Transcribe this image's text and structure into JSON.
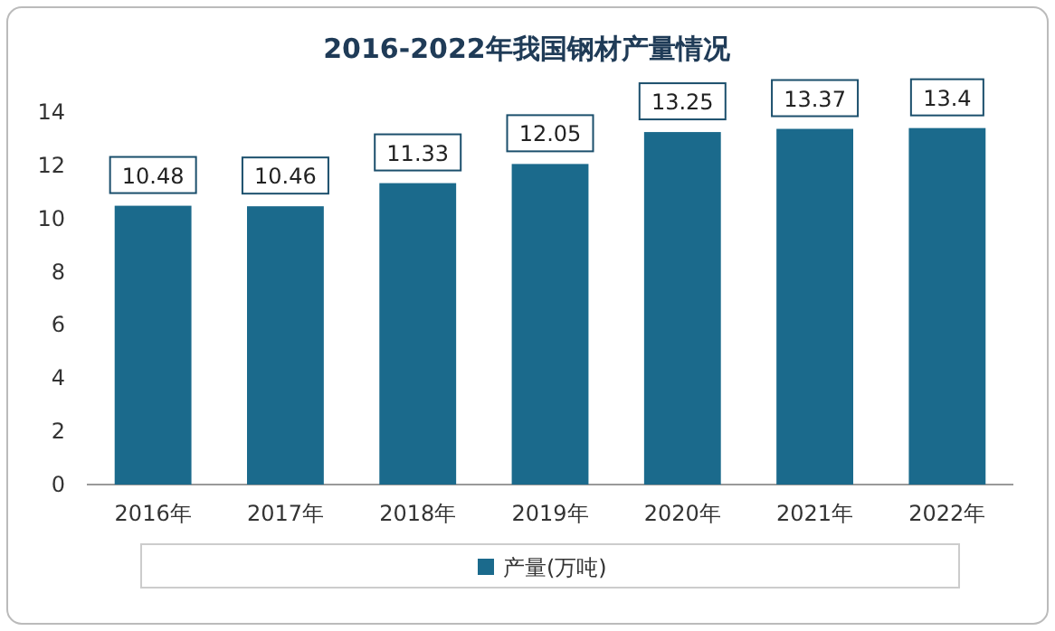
{
  "chart_data": {
    "type": "bar",
    "title": "2016-2022年我国钢材产量情况",
    "categories": [
      "2016年",
      "2017年",
      "2018年",
      "2019年",
      "2020年",
      "2021年",
      "2022年"
    ],
    "series": [
      {
        "name": "产量(万吨)",
        "color": "#1b6a8c",
        "values": [
          10.48,
          10.46,
          11.33,
          12.05,
          13.25,
          13.37,
          13.4
        ]
      }
    ],
    "ylim": [
      0,
      14
    ],
    "yticks": [
      0,
      2,
      4,
      6,
      8,
      10,
      12,
      14
    ],
    "data_labels": true,
    "legend": "bottom",
    "grid": false
  }
}
